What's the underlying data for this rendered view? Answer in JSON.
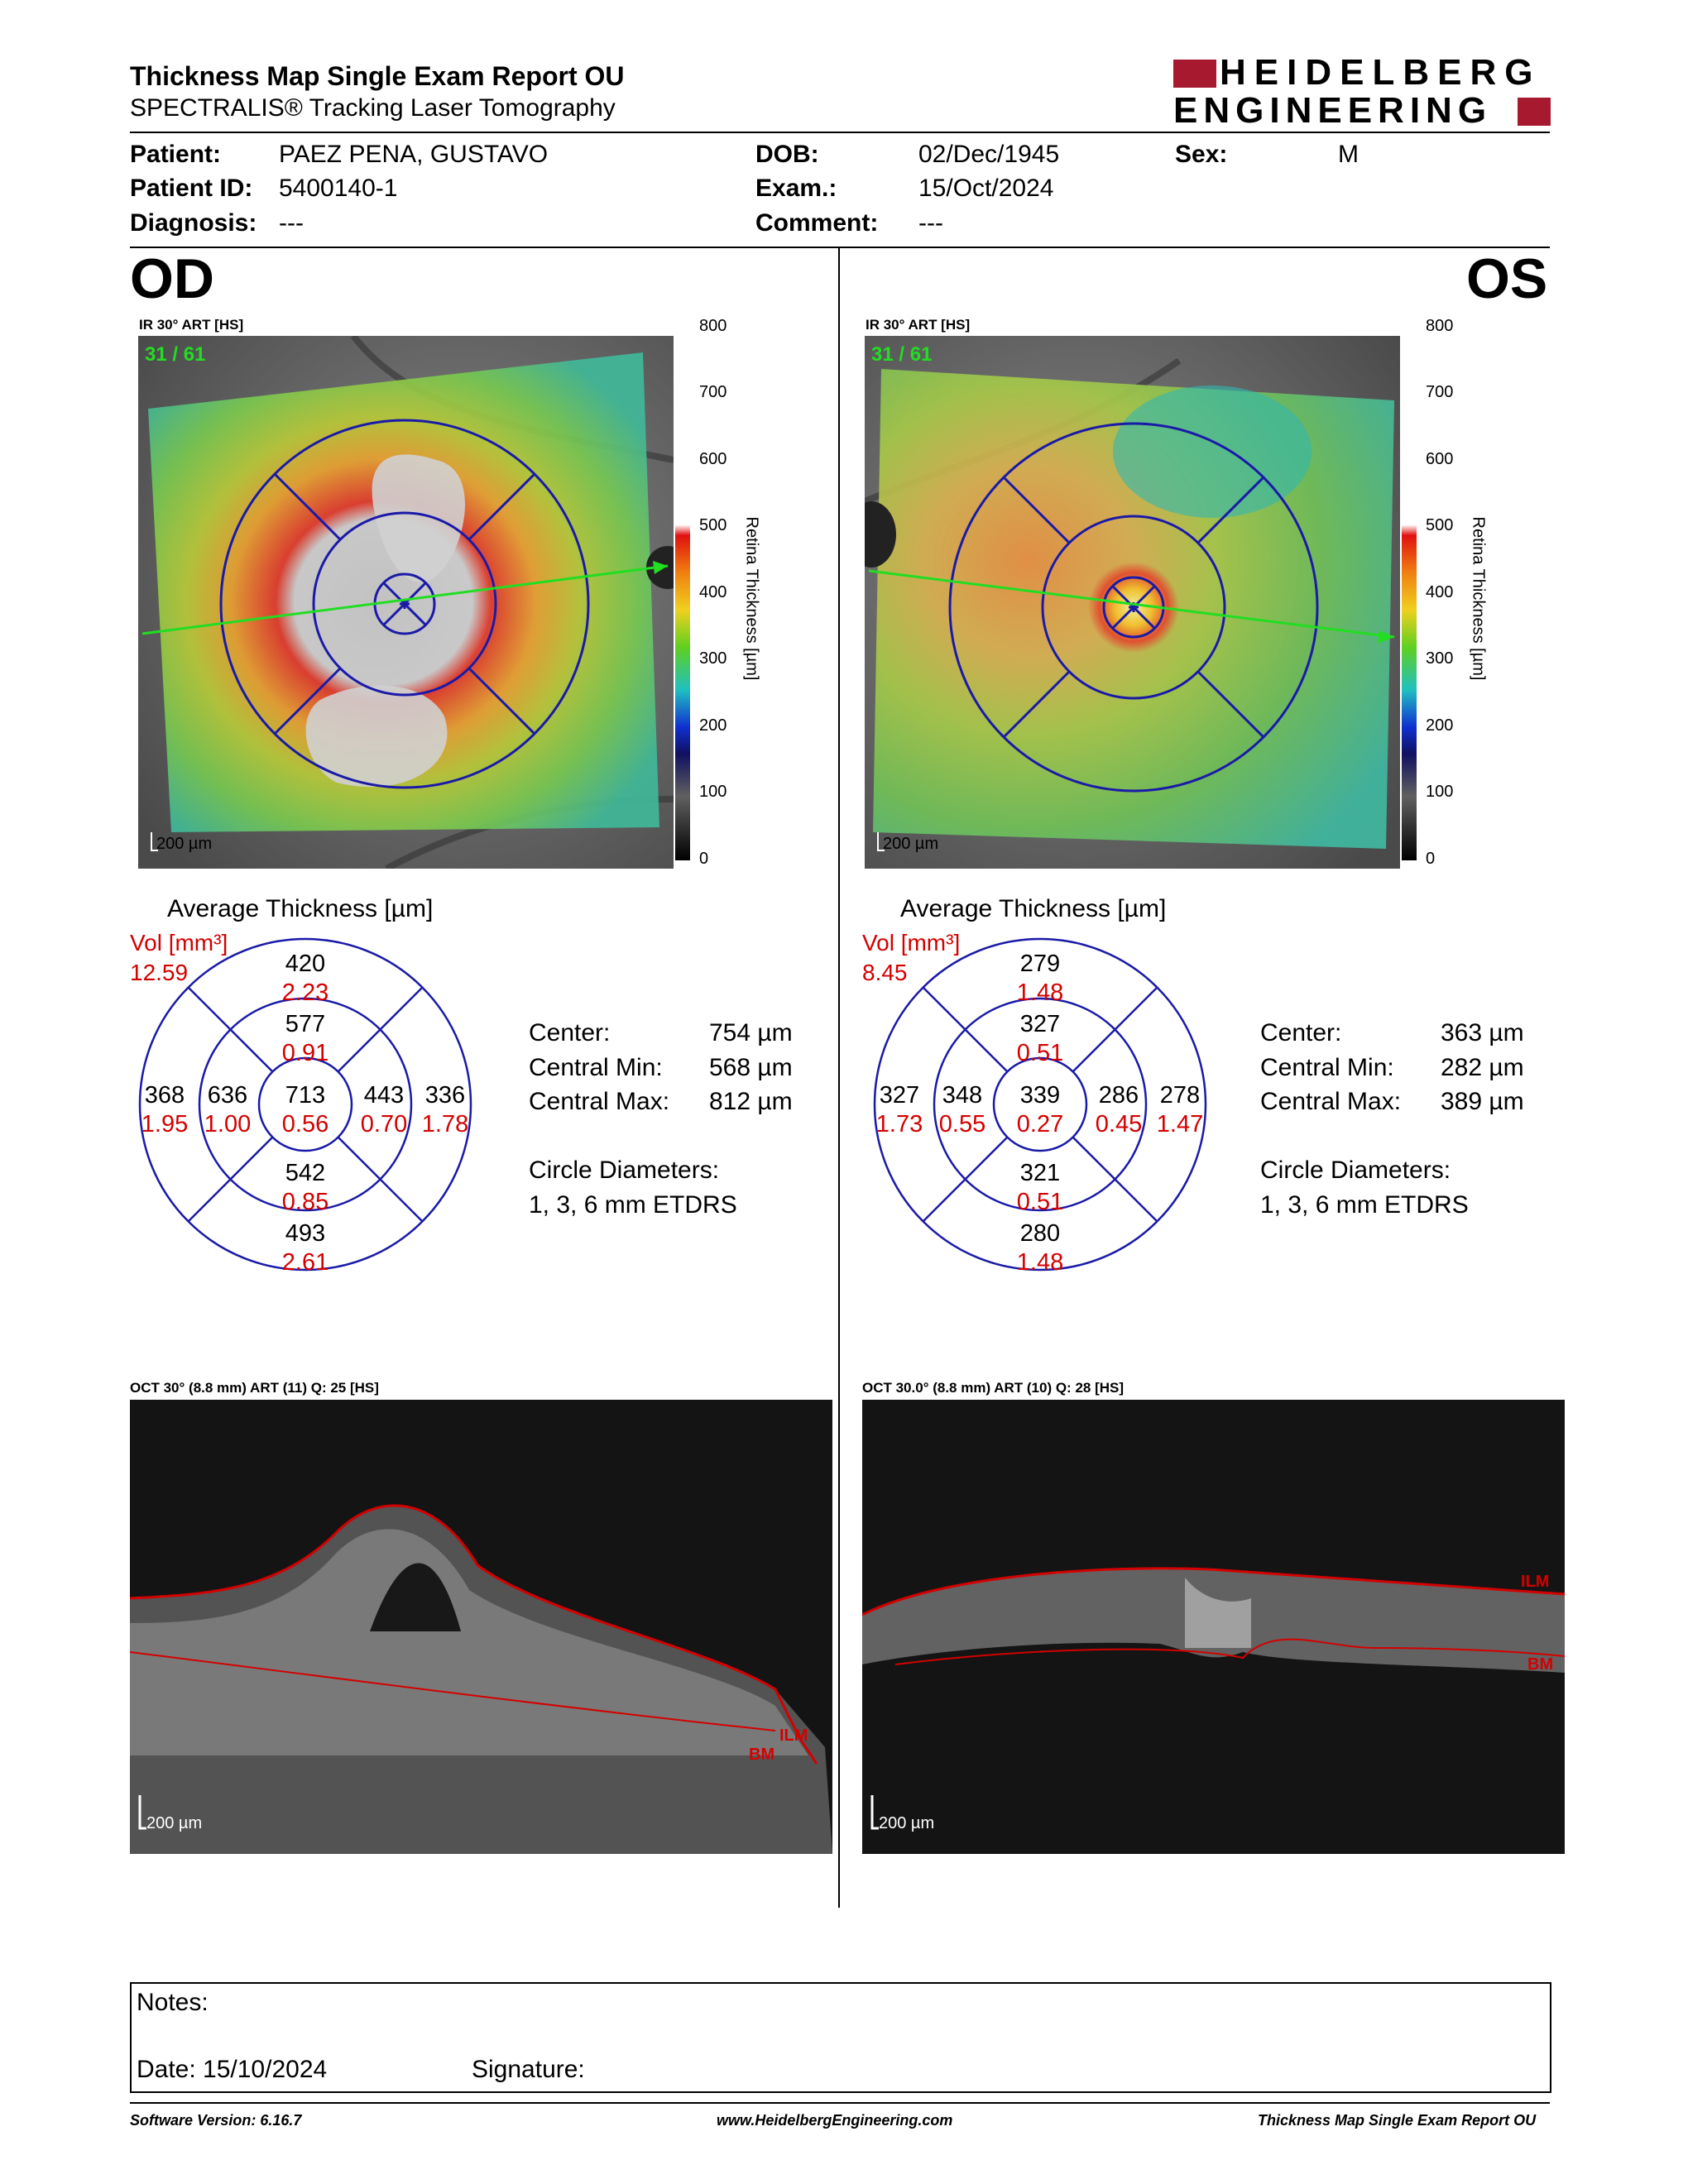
{
  "header": {
    "title": "Thickness Map Single Exam Report OU",
    "subtitle": "SPECTRALIS® Tracking Laser Tomography",
    "logo_line1": "HEIDELBERG",
    "logo_line2": "ENGINEERING"
  },
  "patient": {
    "patient_label": "Patient:",
    "patient_value": "PAEZ PENA, GUSTAVO",
    "id_label": "Patient ID:",
    "id_value": "5400140-1",
    "diagnosis_label": "Diagnosis:",
    "diagnosis_value": "---",
    "dob_label": "DOB:",
    "dob_value": "02/Dec/1945",
    "exam_label": "Exam.:",
    "exam_value": "15/Oct/2024",
    "comment_label": "Comment:",
    "comment_value": "---",
    "sex_label": "Sex:",
    "sex_value": "M"
  },
  "colorbar": {
    "ticks": [
      "800",
      "700",
      "600",
      "500",
      "400",
      "300",
      "200",
      "100",
      "0"
    ],
    "title": "Retina  Thickness [µm]"
  },
  "od": {
    "eye": "OD",
    "ir_label": "IR 30° ART [HS]",
    "frame": "31 / 61",
    "scale": "200 µm",
    "avg_title": "Average Thickness [µm]",
    "vol_label": "Vol [mm³]",
    "vol_value": "12.59",
    "sectors": {
      "outer_sup": [
        "420",
        "2.23"
      ],
      "inner_sup": [
        "577",
        "0.91"
      ],
      "outer_temp": [
        "368",
        "1.95"
      ],
      "inner_temp": [
        "636",
        "1.00"
      ],
      "center": [
        "713",
        "0.56"
      ],
      "inner_nas": [
        "443",
        "0.70"
      ],
      "outer_nas": [
        "336",
        "1.78"
      ],
      "inner_inf": [
        "542",
        "0.85"
      ],
      "outer_inf": [
        "493",
        "2.61"
      ]
    },
    "stats": {
      "center_label": "Center:",
      "center_value": "754 µm",
      "min_label": "Central Min:",
      "min_value": "568 µm",
      "max_label": "Central Max:",
      "max_value": "812 µm",
      "diam_label": "Circle Diameters:",
      "diam_value": "1, 3, 6 mm ETDRS"
    },
    "oct_label": "OCT 30° (8.8 mm) ART (11) Q: 25 [HS]",
    "oct_scale": "200 µm",
    "ilm": "ILM",
    "bm": "BM"
  },
  "os": {
    "eye": "OS",
    "ir_label": "IR 30° ART [HS]",
    "frame": "31 / 61",
    "scale": "200 µm",
    "avg_title": "Average Thickness [µm]",
    "vol_label": "Vol [mm³]",
    "vol_value": "8.45",
    "sectors": {
      "outer_sup": [
        "279",
        "1.48"
      ],
      "inner_sup": [
        "327",
        "0.51"
      ],
      "outer_temp": [
        "327",
        "1.73"
      ],
      "inner_temp": [
        "348",
        "0.55"
      ],
      "center": [
        "339",
        "0.27"
      ],
      "inner_nas": [
        "286",
        "0.45"
      ],
      "outer_nas": [
        "278",
        "1.47"
      ],
      "inner_inf": [
        "321",
        "0.51"
      ],
      "outer_inf": [
        "280",
        "1.48"
      ]
    },
    "stats": {
      "center_label": "Center:",
      "center_value": "363 µm",
      "min_label": "Central Min:",
      "min_value": "282 µm",
      "max_label": "Central Max:",
      "max_value": "389 µm",
      "diam_label": "Circle Diameters:",
      "diam_value": "1, 3, 6 mm ETDRS"
    },
    "oct_label": "OCT 30.0° (8.8 mm) ART (10) Q: 28 [HS]",
    "oct_scale": "200 µm",
    "ilm": "ILM",
    "bm": "BM"
  },
  "notes": {
    "notes_label": "Notes:",
    "date_label": "Date: 15/10/2024",
    "signature_label": "Signature:"
  },
  "footer": {
    "software": "Software Version: 6.16.7",
    "website": "www.HeidelbergEngineering.com",
    "report": "Thickness Map Single Exam Report OU"
  },
  "colors": {
    "brand_red": "#a6192e",
    "grid_blue": "#1a1aa8",
    "value_red": "#d40000",
    "ilm_red": "#d40000"
  }
}
